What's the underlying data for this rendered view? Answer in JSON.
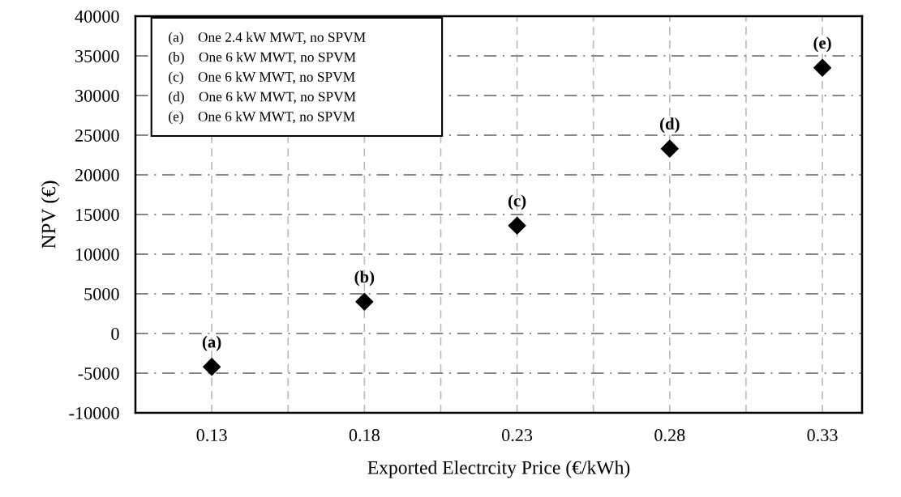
{
  "chart_data": {
    "type": "scatter",
    "xlabel": "Exported Electrcity Price (€/kWh)",
    "ylabel": "NPV (€)",
    "x": [
      0.13,
      0.18,
      0.23,
      0.28,
      0.33
    ],
    "series": [
      {
        "color": "#000000",
        "values": [
          -4200,
          4000,
          13600,
          23300,
          33500
        ]
      }
    ],
    "marker": "diamond",
    "xlim": [
      0.105,
      0.343
    ],
    "xticks": [
      0.13,
      {
        "value": 0.155,
        "label": null
      },
      0.18,
      {
        "value": 0.205,
        "label": null
      },
      0.23,
      {
        "value": 0.255,
        "label": null
      },
      0.28,
      {
        "value": 0.305,
        "label": null
      },
      0.33
    ],
    "ylim": [
      -10000,
      40000
    ],
    "yticks": [
      -10000,
      -5000,
      0,
      5000,
      10000,
      15000,
      20000,
      25000,
      30000,
      35000,
      40000
    ],
    "grid": true,
    "annotations": [
      {
        "text": "(a)",
        "x": 0.13,
        "y": -4200
      },
      {
        "text": "(b)",
        "x": 0.18,
        "y": 4000
      },
      {
        "text": "(c)",
        "x": 0.23,
        "y": 13600
      },
      {
        "text": "(d)",
        "x": 0.28,
        "y": 23300
      },
      {
        "text": "(e)",
        "x": 0.33,
        "y": 33500
      },
      "(a)    One 2.4 kW MWT, no SPVM",
      "(b)    One 6 kW MWT, no SPVM",
      "(c)    One 6 kW MWT, no SPVM",
      "(d)    One 6 kW MWT, no SPVM",
      "(e)    One 6 kW MWT, no SPVM"
    ]
  }
}
